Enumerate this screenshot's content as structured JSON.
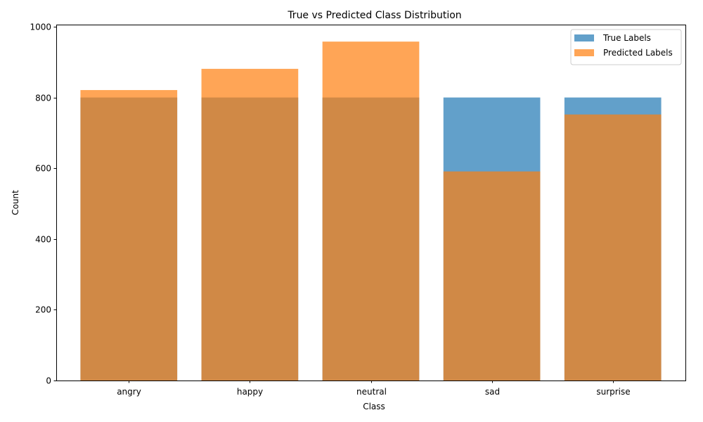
{
  "chart_data": {
    "type": "bar",
    "title": "True vs Predicted Class Distribution",
    "xlabel": "Class",
    "ylabel": "Count",
    "categories": [
      "angry",
      "happy",
      "neutral",
      "sad",
      "surprise"
    ],
    "series": [
      {
        "name": "True Labels",
        "values": [
          800,
          800,
          800,
          800,
          800
        ],
        "color": "#1f77b4",
        "opacity": 0.7
      },
      {
        "name": "Predicted Labels",
        "values": [
          821,
          881,
          958,
          591,
          752
        ],
        "color": "#ff7f0e",
        "opacity": 0.7
      }
    ],
    "ylim": [
      0,
      1006
    ],
    "yticks": [
      0,
      200,
      400,
      600,
      800,
      1000
    ],
    "overlaid": true,
    "grid": false,
    "legend_position": "top-right"
  }
}
